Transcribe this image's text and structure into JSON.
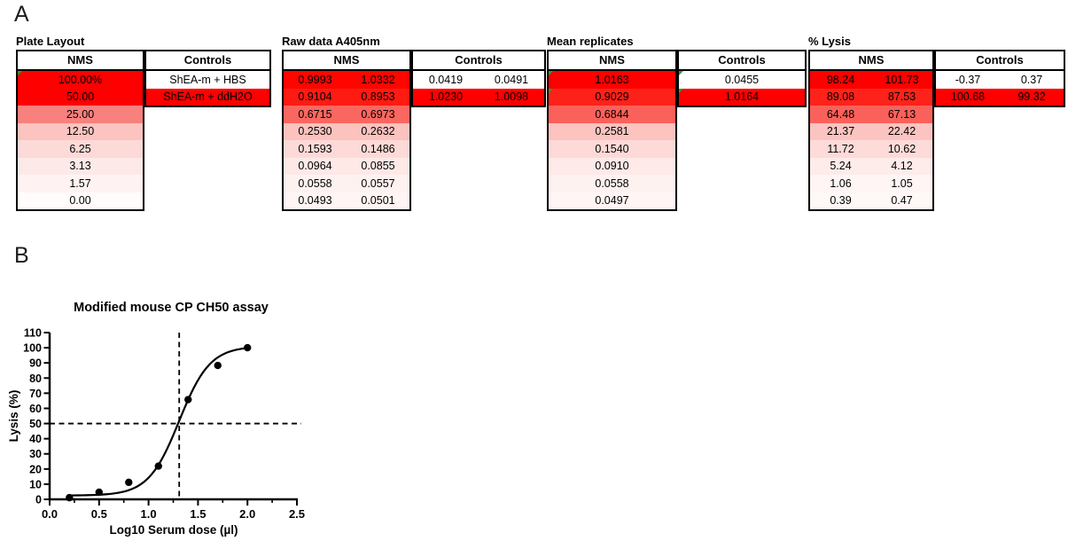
{
  "panels": {
    "a_label": "A",
    "b_label": "B"
  },
  "colors": {
    "heat_red": "#FE0000",
    "flag_green": "#379637",
    "border_black": "#000000",
    "text": "#000000"
  },
  "tables": [
    {
      "title": "Plate Layout",
      "nms_label": "NMS",
      "controls_label": "Controls",
      "nms_rows": [
        {
          "cells": [
            "100.00%"
          ],
          "fill": "#FE0000",
          "flag": true
        },
        {
          "cells": [
            "50.00"
          ],
          "fill": "#FE0000",
          "flag": false
        },
        {
          "cells": [
            "25.00"
          ],
          "fill": "#F8807D",
          "flag": false
        },
        {
          "cells": [
            "12.50"
          ],
          "fill": "#FBC4C0",
          "flag": false
        },
        {
          "cells": [
            "6.25"
          ],
          "fill": "#FCDAD7",
          "flag": false
        },
        {
          "cells": [
            "3.13"
          ],
          "fill": "#FDEAE8",
          "flag": false
        },
        {
          "cells": [
            "1.57"
          ],
          "fill": "#FEF3F2",
          "flag": false
        },
        {
          "cells": [
            "0.00"
          ],
          "fill": "#FFFCFB",
          "flag": false
        }
      ],
      "controls_rows": [
        {
          "cells": [
            "ShEA-m + HBS"
          ],
          "fill": "#FFFFFF",
          "flag": false
        },
        {
          "cells": [
            "ShEA-m + ddH2O"
          ],
          "fill": "#FE0000",
          "flag": false
        }
      ]
    },
    {
      "title": "Raw data A405nm",
      "nms_label": "NMS",
      "controls_label": "Controls",
      "nms_rows": [
        {
          "cells": [
            "0.9993",
            "1.0332"
          ],
          "fill": "#FE0500",
          "flag": false
        },
        {
          "cells": [
            "0.9104",
            "0.8953"
          ],
          "fill": "#FE1B12",
          "flag": false
        },
        {
          "cells": [
            "0.6715",
            "0.6973"
          ],
          "fill": "#FA6760",
          "flag": false
        },
        {
          "cells": [
            "0.2530",
            "0.2632"
          ],
          "fill": "#FCC2BE",
          "flag": false
        },
        {
          "cells": [
            "0.1593",
            "0.1486"
          ],
          "fill": "#FDDAD7",
          "flag": false
        },
        {
          "cells": [
            "0.0964",
            "0.0855"
          ],
          "fill": "#FEE9E7",
          "flag": false
        },
        {
          "cells": [
            "0.0558",
            "0.0557"
          ],
          "fill": "#FEF2F1",
          "flag": false
        },
        {
          "cells": [
            "0.0493",
            "0.0501"
          ],
          "fill": "#FEF5F4",
          "flag": false
        }
      ],
      "controls_rows": [
        {
          "cells": [
            "0.0419",
            "0.0491"
          ],
          "fill": "#FFFFFF",
          "flag": false
        },
        {
          "cells": [
            "1.0230",
            "1.0098"
          ],
          "fill": "#FE0000",
          "flag": false
        }
      ]
    },
    {
      "title": "Mean replicates",
      "nms_label": "NMS",
      "controls_label": "Controls",
      "nms_rows": [
        {
          "cells": [
            "1.0163"
          ],
          "fill": "#FE0000",
          "flag": true
        },
        {
          "cells": [
            "0.9029"
          ],
          "fill": "#FD2219",
          "flag": true
        },
        {
          "cells": [
            "0.6844"
          ],
          "fill": "#FA615A",
          "flag": false
        },
        {
          "cells": [
            "0.2581"
          ],
          "fill": "#FCC3BF",
          "flag": false
        },
        {
          "cells": [
            "0.1540"
          ],
          "fill": "#FDDAD8",
          "flag": false
        },
        {
          "cells": [
            "0.0910"
          ],
          "fill": "#FEEAE8",
          "flag": false
        },
        {
          "cells": [
            "0.0558"
          ],
          "fill": "#FEF2F1",
          "flag": false
        },
        {
          "cells": [
            "0.0497"
          ],
          "fill": "#FEF5F4",
          "flag": false
        }
      ],
      "controls_rows": [
        {
          "cells": [
            "0.0455"
          ],
          "fill": "#FFFFFF",
          "flag": true
        },
        {
          "cells": [
            "1.0164"
          ],
          "fill": "#FE0000",
          "flag": true
        }
      ]
    },
    {
      "title": "% Lysis",
      "nms_label": "NMS",
      "controls_label": "Controls",
      "nms_rows": [
        {
          "cells": [
            "98.24",
            "101.73"
          ],
          "fill": "#FE0000",
          "flag": false
        },
        {
          "cells": [
            "89.08",
            "87.53"
          ],
          "fill": "#FE231A",
          "flag": false
        },
        {
          "cells": [
            "64.48",
            "67.13"
          ],
          "fill": "#FA615A",
          "flag": false
        },
        {
          "cells": [
            "21.37",
            "22.42"
          ],
          "fill": "#FCC4C0",
          "flag": false
        },
        {
          "cells": [
            "11.72",
            "10.62"
          ],
          "fill": "#FDDBD9",
          "flag": false
        },
        {
          "cells": [
            "5.24",
            "4.12"
          ],
          "fill": "#FEECEA",
          "flag": false
        },
        {
          "cells": [
            "1.06",
            "1.05"
          ],
          "fill": "#FEF5F4",
          "flag": false
        },
        {
          "cells": [
            "0.39",
            "0.47"
          ],
          "fill": "#FEF8F7",
          "flag": false
        }
      ],
      "controls_rows": [
        {
          "cells": [
            "-0.37",
            "0.37"
          ],
          "fill": "#FFFFFF",
          "flag": false
        },
        {
          "cells": [
            "100.68",
            "99.32"
          ],
          "fill": "#FE0000",
          "flag": false
        }
      ]
    }
  ],
  "chart_data": {
    "type": "scatter",
    "title": "Modified mouse CP CH50 assay",
    "xlabel": "Log10 Serum dose (µl)",
    "ylabel": "Lysis (%)",
    "xlim": [
      0,
      2.5
    ],
    "ylim": [
      0,
      110
    ],
    "xticks": [
      0.0,
      0.5,
      1.0,
      1.5,
      2.0,
      2.5
    ],
    "x_minor_tick_step": 0.25,
    "yticks": [
      0,
      10,
      20,
      30,
      40,
      50,
      60,
      70,
      80,
      90,
      100,
      110
    ],
    "grid": false,
    "legend": "none",
    "points": [
      {
        "x": 0.2,
        "y": 1.1
      },
      {
        "x": 0.5,
        "y": 4.7
      },
      {
        "x": 0.8,
        "y": 11.2
      },
      {
        "x": 1.1,
        "y": 21.9
      },
      {
        "x": 1.4,
        "y": 65.8
      },
      {
        "x": 1.7,
        "y": 88.3
      },
      {
        "x": 2.0,
        "y": 100.0
      }
    ],
    "fit_curve": {
      "model": "4PL",
      "bottom": 2.5,
      "top": 101,
      "logEC50": 1.31,
      "hillslope": 2.8,
      "x_start": 0.18,
      "x_end": 2.01
    },
    "reference_lines": {
      "horizontal_y": 50,
      "vertical_x": 1.31,
      "style": "dashed"
    },
    "marker_color": "#000000",
    "line_color": "#000000"
  }
}
